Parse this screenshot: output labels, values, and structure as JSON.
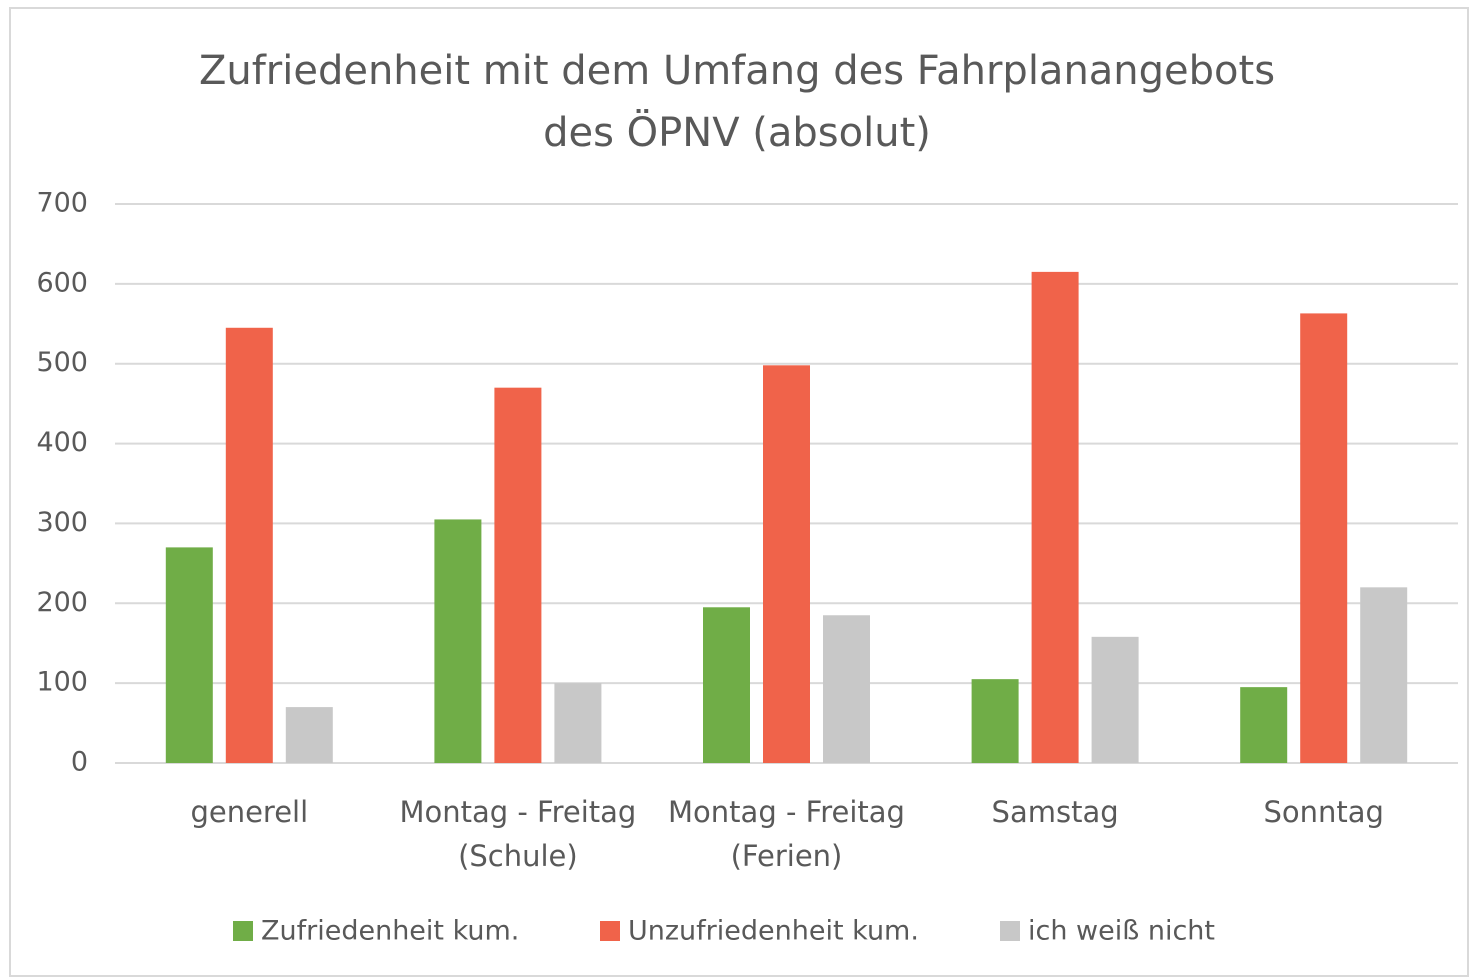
{
  "chart_data": {
    "type": "bar",
    "title": "Zufriedenheit mit dem Umfang des Fahrplanangebots\ndes ÖPNV (absolut)",
    "categories": [
      "generell",
      "Montag - Freitag\n(Schule)",
      "Montag - Freitag\n(Ferien)",
      "Samstag",
      "Sonntag"
    ],
    "series": [
      {
        "name": "Zufriedenheit kum.",
        "color": "#70ad47",
        "values": [
          270,
          305,
          195,
          105,
          95
        ]
      },
      {
        "name": "Unzufriedenheit kum.",
        "color": "#f0634a",
        "values": [
          545,
          470,
          498,
          615,
          563
        ]
      },
      {
        "name": "ich weiß nicht",
        "color": "#c8c8c8",
        "values": [
          70,
          100,
          185,
          158,
          220
        ]
      }
    ],
    "ylim": [
      0,
      700
    ],
    "yticks": [
      0,
      100,
      200,
      300,
      400,
      500,
      600,
      700
    ],
    "grid": true,
    "legend": "bottom"
  }
}
